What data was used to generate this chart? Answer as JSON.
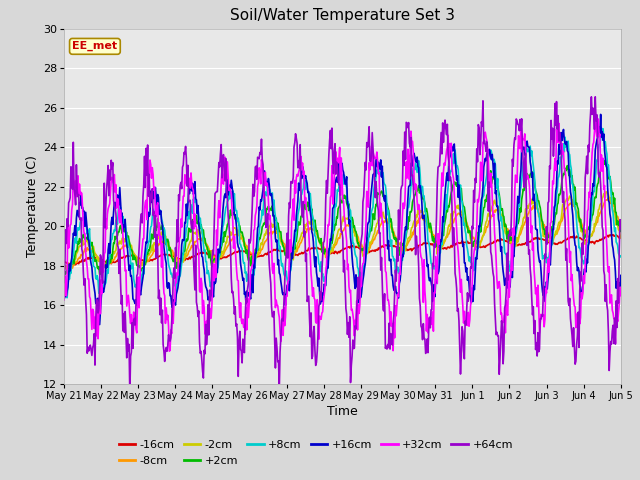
{
  "title": "Soil/Water Temperature Set 3",
  "xlabel": "Time",
  "ylabel": "Temperature (C)",
  "ylim": [
    12,
    30
  ],
  "yticks": [
    12,
    14,
    16,
    18,
    20,
    22,
    24,
    26,
    28,
    30
  ],
  "annotation_text": "EE_met",
  "annotation_color": "#cc0000",
  "annotation_bg": "#ffffcc",
  "annotation_border": "#aa8800",
  "series": [
    {
      "label": "-16cm",
      "color": "#dd0000",
      "lw": 1.2
    },
    {
      "label": "-8cm",
      "color": "#ff9900",
      "lw": 1.2
    },
    {
      "label": "-2cm",
      "color": "#cccc00",
      "lw": 1.2
    },
    {
      "label": "+2cm",
      "color": "#00bb00",
      "lw": 1.2
    },
    {
      "label": "+8cm",
      "color": "#00cccc",
      "lw": 1.2
    },
    {
      "label": "+16cm",
      "color": "#0000cc",
      "lw": 1.2
    },
    {
      "label": "+32cm",
      "color": "#ff00ff",
      "lw": 1.2
    },
    {
      "label": "+64cm",
      "color": "#9900cc",
      "lw": 1.2
    }
  ],
  "fig_bg_color": "#d8d8d8",
  "plot_bg": "#e8e8e8",
  "grid_color": "#ffffff",
  "tick_labels": [
    "May 21",
    "May 22",
    "May 23",
    "May 24",
    "May 25",
    "May 26",
    "May 27",
    "May 28",
    "May 29",
    "May 30",
    "May 31",
    "Jun 1",
    "Jun 2",
    "Jun 3",
    "Jun 4",
    "Jun 5"
  ]
}
